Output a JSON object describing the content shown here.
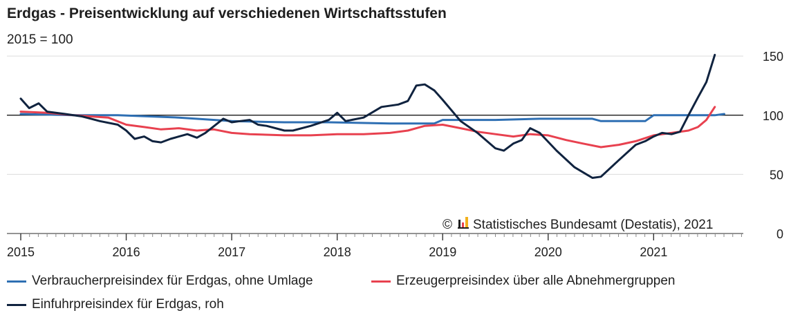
{
  "title": "Erdgas - Preisentwicklung auf verschiedenen Wirtschaftsstufen",
  "subtitle": "2015 = 100",
  "credit": "Statistisches Bundesamt (Destatis), 2021",
  "copyright_symbol": "©",
  "icon": "destatis-logo-icon",
  "colors": {
    "verbraucher": "#2e6fb3",
    "erzeuger": "#e8414f",
    "einfuhr": "#10233f",
    "grid": "#dcdcdc",
    "baseline": "#000000"
  },
  "chart_data": {
    "type": "line",
    "title": "Erdgas - Preisentwicklung auf verschiedenen Wirtschaftsstufen",
    "subtitle": "2015 = 100",
    "x_ticks": [
      "2015",
      "2016",
      "2017",
      "2018",
      "2019",
      "2020",
      "2021"
    ],
    "y_ticks": [
      0,
      50,
      100,
      150
    ],
    "xlim": [
      2015.0,
      2021.85
    ],
    "ylim": [
      0,
      160
    ],
    "reference_line": 100,
    "grid": "horizontal",
    "legend_position": "bottom",
    "series": [
      {
        "name": "Verbraucherpreisindex für Erdgas, ohne Umlage",
        "color": "#2e6fb3",
        "x": [
          2015.0,
          2015.5,
          2015.92,
          2016.5,
          2017.0,
          2017.5,
          2017.92,
          2018.5,
          2018.92,
          2019.0,
          2019.5,
          2019.92,
          2020.42,
          2020.5,
          2020.92,
          2021.0,
          2021.58,
          2021.67
        ],
        "y": [
          101,
          100,
          100,
          98,
          95,
          94,
          94,
          93,
          93,
          96,
          96,
          97,
          97,
          95,
          95,
          100,
          100,
          101
        ]
      },
      {
        "name": "Erzeugerpreisindex über alle Abnehmergruppen",
        "color": "#e8414f",
        "x": [
          2015.0,
          2015.25,
          2015.5,
          2015.83,
          2016.0,
          2016.17,
          2016.33,
          2016.5,
          2016.67,
          2016.83,
          2017.0,
          2017.17,
          2017.5,
          2017.75,
          2018.0,
          2018.25,
          2018.5,
          2018.67,
          2018.83,
          2019.0,
          2019.17,
          2019.33,
          2019.5,
          2019.67,
          2019.83,
          2020.0,
          2020.17,
          2020.33,
          2020.5,
          2020.67,
          2020.83,
          2021.0,
          2021.17,
          2021.33,
          2021.42,
          2021.5,
          2021.58
        ],
        "y": [
          103,
          102,
          100,
          98,
          92,
          90,
          88,
          89,
          87,
          88,
          85,
          84,
          83,
          83,
          84,
          84,
          85,
          87,
          91,
          92,
          89,
          86,
          84,
          82,
          84,
          83,
          79,
          76,
          73,
          75,
          78,
          83,
          85,
          87,
          90,
          96,
          107
        ]
      },
      {
        "name": "Einfuhrpreisindex für Erdgas, roh",
        "color": "#10233f",
        "x": [
          2015.0,
          2015.08,
          2015.17,
          2015.25,
          2015.42,
          2015.58,
          2015.75,
          2015.92,
          2016.0,
          2016.08,
          2016.17,
          2016.25,
          2016.33,
          2016.42,
          2016.5,
          2016.58,
          2016.67,
          2016.75,
          2016.92,
          2017.0,
          2017.08,
          2017.17,
          2017.25,
          2017.33,
          2017.5,
          2017.58,
          2017.75,
          2017.92,
          2018.0,
          2018.08,
          2018.25,
          2018.42,
          2018.58,
          2018.67,
          2018.75,
          2018.83,
          2018.92,
          2019.0,
          2019.17,
          2019.33,
          2019.5,
          2019.58,
          2019.67,
          2019.75,
          2019.83,
          2019.92,
          2020.08,
          2020.25,
          2020.42,
          2020.5,
          2020.67,
          2020.83,
          2020.92,
          2021.0,
          2021.08,
          2021.17,
          2021.25,
          2021.33,
          2021.42,
          2021.5,
          2021.58
        ],
        "y": [
          114,
          106,
          110,
          103,
          101,
          99,
          95,
          92,
          87,
          80,
          82,
          78,
          77,
          80,
          82,
          84,
          81,
          85,
          97,
          94,
          95,
          96,
          92,
          91,
          87,
          87,
          91,
          96,
          102,
          95,
          98,
          107,
          109,
          112,
          125,
          126,
          121,
          113,
          95,
          85,
          72,
          70,
          76,
          79,
          89,
          85,
          70,
          56,
          47,
          48,
          62,
          75,
          78,
          82,
          85,
          84,
          86,
          100,
          115,
          128,
          151
        ]
      }
    ]
  }
}
